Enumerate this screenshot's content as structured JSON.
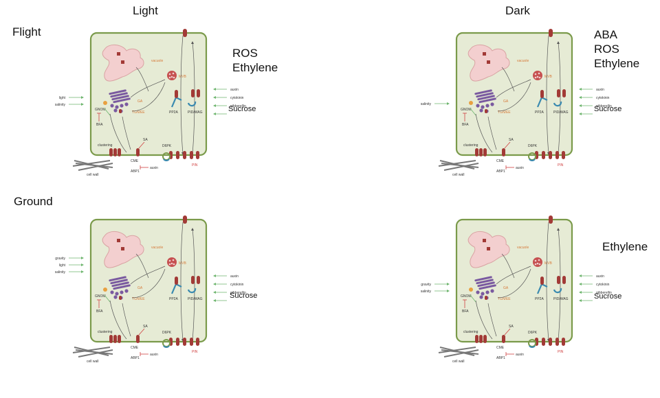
{
  "headers": {
    "light": "Light",
    "dark": "Dark",
    "flight": "Flight",
    "ground": "Ground"
  },
  "labels": {
    "vacuole": "vacuole",
    "mvb": "MVB",
    "ga": "GA",
    "tgn": "TGN/EE",
    "gnom": "GNOM",
    "bfa": "BFA",
    "pp2a": "PP2A",
    "pid": "PID/WAG",
    "sa": "SA",
    "d6pk": "D6PK",
    "clustering": "clustering",
    "cme": "CME",
    "abp1": "ABP1",
    "auxin_in": "auxin",
    "pin": "PIN",
    "cellwall": "cell wall",
    "hormones": [
      "auxin",
      "cytokinin",
      "gibberellin"
    ]
  },
  "panels": [
    {
      "id": "flight-light",
      "stimuli": [
        "light",
        "salinity"
      ],
      "stress": [
        "ROS",
        "Ethylene"
      ],
      "sucrose": "Sucrose"
    },
    {
      "id": "flight-dark",
      "stimuli": [
        "salinity"
      ],
      "stress": [
        "ABA",
        "ROS",
        "Ethylene"
      ],
      "sucrose": "Sucrose"
    },
    {
      "id": "ground-light",
      "stimuli": [
        "gravity",
        "light",
        "salinity"
      ],
      "stress": [],
      "sucrose": "Sucrose"
    },
    {
      "id": "ground-dark",
      "stimuli": [
        "gravity",
        "salinity"
      ],
      "stress": [
        "Ethylene"
      ],
      "sucrose": "Sucrose"
    }
  ],
  "colors": {
    "cell_fill": "#e6ebd5",
    "cell_stroke": "#7a9a4a",
    "vacuole": "#f3cfcf",
    "transporter": "#a23a36",
    "golgi": "#7a5aa0",
    "arrow_green": "#6db56d",
    "label_orange": "#d67a3a",
    "inhibit_red": "#d04040",
    "blue": "#3a8ab0"
  }
}
